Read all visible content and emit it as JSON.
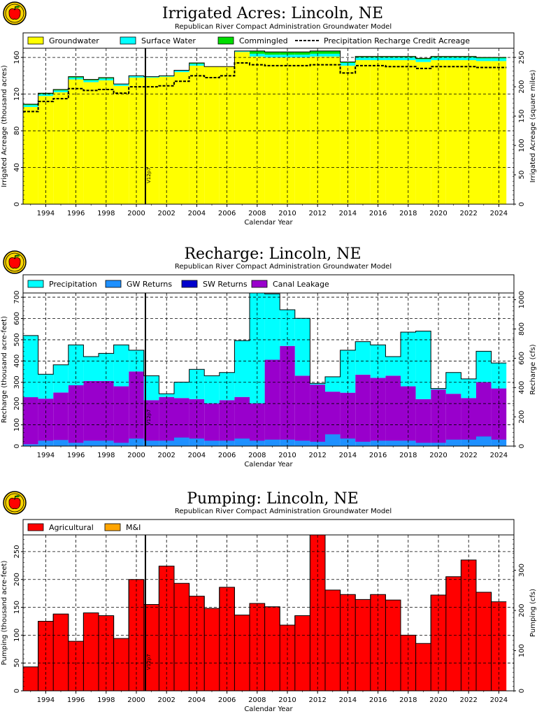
{
  "chart_data": [
    {
      "type": "area",
      "title": "Irrigated Acres: Lincoln, NE",
      "subtitle": "Republican River Compact Administration Groundwater Model",
      "xlabel": "Calendar Year",
      "ylabel": "Irrigated Acreage (thousand acres)",
      "ylabel_right": "Irrigated Acreage (square miles)",
      "ylim": [
        0,
        170
      ],
      "yticks": [
        0,
        40.0,
        80.0,
        120,
        160
      ],
      "yticks_right": [
        0,
        50.0,
        100,
        150,
        200,
        250
      ],
      "xlim": [
        1992.5,
        2025.0
      ],
      "xticks": [
        "1994",
        "1996",
        "1998",
        "2000",
        "2002",
        "2004",
        "2006",
        "2008",
        "2010",
        "2012",
        "2014",
        "2016",
        "2018",
        "2020",
        "2022",
        "2024"
      ],
      "marker": {
        "x": 2000.6,
        "label": "V12p7"
      },
      "years": [
        1992.5,
        1993.5,
        1994.5,
        1995.5,
        1996.5,
        1997.5,
        1998.5,
        1999.5,
        2000.5,
        2001.5,
        2002.5,
        2003.5,
        2004.5,
        2005.5,
        2006.5,
        2007.5,
        2008.5,
        2009.5,
        2010.5,
        2011.5,
        2012.5,
        2013.5,
        2014.5,
        2015.5,
        2016.5,
        2017.5,
        2018.5,
        2019.5,
        2020.5,
        2021.5,
        2022.5,
        2023.5
      ],
      "series": [
        {
          "name": "Groundwater",
          "color": "#ffff00",
          "values": [
            106,
            118,
            122,
            136,
            133,
            135,
            129,
            138,
            138,
            139,
            144,
            151,
            150,
            150,
            166,
            161,
            160,
            160,
            160,
            161,
            161,
            151,
            157,
            157,
            157,
            157,
            155,
            157,
            157,
            157,
            156,
            156
          ]
        },
        {
          "name": "Surface Water",
          "color": "#00ffff",
          "values": [
            2,
            2,
            2,
            2,
            2,
            2,
            2,
            2,
            1,
            1,
            2,
            2,
            0,
            0,
            1,
            3,
            3,
            3,
            3,
            3,
            3,
            3,
            3,
            3,
            3,
            3,
            3,
            3,
            3,
            3,
            3,
            3
          ]
        },
        {
          "name": "Commingled",
          "color": "#00dd00",
          "values": [
            1,
            1,
            1,
            1,
            1,
            1,
            0,
            0,
            0,
            0,
            0,
            1,
            0,
            0,
            0,
            3,
            3,
            3,
            3,
            3,
            3,
            1,
            1,
            1,
            1,
            1,
            1,
            1,
            1,
            1,
            1,
            1
          ]
        },
        {
          "name": "Precipitation Recharge Credit Acreage",
          "style": "dashed",
          "values": [
            101,
            112,
            115,
            126,
            124,
            125,
            121,
            128,
            128,
            129,
            134,
            140,
            138,
            140,
            154,
            152,
            151,
            151,
            151,
            152,
            152,
            143,
            151,
            151,
            150,
            150,
            148,
            150,
            150,
            150,
            149,
            149
          ]
        }
      ]
    },
    {
      "type": "area",
      "title": "Recharge: Lincoln, NE",
      "subtitle": "Republican River Compact Administration Groundwater Model",
      "xlabel": "Calendar Year",
      "ylabel": "Recharge (thousand acre-feet)",
      "ylabel_right": "Recharge (cfs)",
      "ylim": [
        0,
        720
      ],
      "yticks": [
        0,
        100,
        200,
        300,
        400,
        500,
        600,
        700
      ],
      "yticks_right": [
        0,
        200,
        400,
        600,
        800,
        1000
      ],
      "xlim": [
        1992.5,
        2025.0
      ],
      "xticks": [
        "1994",
        "1996",
        "1998",
        "2000",
        "2002",
        "2004",
        "2006",
        "2008",
        "2010",
        "2012",
        "2014",
        "2016",
        "2018",
        "2020",
        "2022",
        "2024"
      ],
      "marker": {
        "x": 2000.6,
        "label": "V12p7"
      },
      "years": [
        1992.5,
        1993.5,
        1994.5,
        1995.5,
        1996.5,
        1997.5,
        1998.5,
        1999.5,
        2000.5,
        2001.5,
        2002.5,
        2003.5,
        2004.5,
        2005.5,
        2006.5,
        2007.5,
        2008.5,
        2009.5,
        2010.5,
        2011.5,
        2012.5,
        2013.5,
        2014.5,
        2015.5,
        2016.5,
        2017.5,
        2018.5,
        2019.5,
        2020.5,
        2021.5,
        2022.5,
        2023.5
      ],
      "series": [
        {
          "name": "GW Returns",
          "color": "#1e90ff",
          "values": [
            8,
            25,
            28,
            15,
            25,
            25,
            15,
            35,
            25,
            25,
            40,
            35,
            25,
            25,
            35,
            25,
            30,
            30,
            25,
            20,
            55,
            35,
            20,
            25,
            25,
            25,
            15,
            15,
            30,
            30,
            45,
            30
          ]
        },
        {
          "name": "SW Returns",
          "color": "#0000cc",
          "values": [
            1,
            1,
            1,
            1,
            1,
            1,
            1,
            1,
            1,
            1,
            1,
            1,
            1,
            1,
            1,
            1,
            1,
            1,
            1,
            1,
            1,
            1,
            1,
            1,
            1,
            1,
            1,
            1,
            1,
            1,
            1,
            1
          ]
        },
        {
          "name": "Canal Leakage",
          "color": "#9900cc",
          "values": [
            221,
            197,
            223,
            270,
            280,
            280,
            265,
            315,
            190,
            205,
            185,
            185,
            175,
            190,
            195,
            175,
            375,
            440,
            305,
            268,
            200,
            215,
            315,
            295,
            305,
            255,
            205,
            250,
            215,
            195,
            255,
            240
          ]
        },
        {
          "name": "Precipitation",
          "color": "#00ffff",
          "values": [
            290,
            115,
            130,
            190,
            115,
            130,
            195,
            100,
            115,
            15,
            75,
            140,
            130,
            130,
            265,
            520,
            310,
            170,
            270,
            6,
            70,
            200,
            155,
            155,
            90,
            255,
            320,
            5,
            100,
            90,
            145,
            120
          ]
        }
      ]
    },
    {
      "type": "bar",
      "title": "Pumping: Lincoln, NE",
      "subtitle": "Republican River Compact Administration Groundwater Model",
      "xlabel": "Calendar Year",
      "ylabel": "Pumping (thousand acre-feet)",
      "ylabel_right": "Pumping (cfs)",
      "ylim": [
        0,
        280
      ],
      "yticks": [
        0,
        50,
        100,
        150,
        200,
        250
      ],
      "yticks_right": [
        0,
        100,
        200,
        300
      ],
      "xlim": [
        1992.5,
        2025.0
      ],
      "xticks": [
        "1994",
        "1996",
        "1998",
        "2000",
        "2002",
        "2004",
        "2006",
        "2008",
        "2010",
        "2012",
        "2014",
        "2016",
        "2018",
        "2020",
        "2022",
        "2024"
      ],
      "marker": {
        "x": 2000.6,
        "label": "V12p7"
      },
      "years": [
        1992.5,
        1993.5,
        1994.5,
        1995.5,
        1996.5,
        1997.5,
        1998.5,
        1999.5,
        2000.5,
        2001.5,
        2002.5,
        2003.5,
        2004.5,
        2005.5,
        2006.5,
        2007.5,
        2008.5,
        2009.5,
        2010.5,
        2011.5,
        2012.5,
        2013.5,
        2014.5,
        2015.5,
        2016.5,
        2017.5,
        2018.5,
        2019.5,
        2020.5,
        2021.5,
        2022.5,
        2023.5
      ],
      "series": [
        {
          "name": "Agricultural",
          "color": "#ff0000",
          "values": [
            43,
            125,
            138,
            89,
            140,
            135,
            94,
            200,
            155,
            224,
            193,
            170,
            148,
            186,
            136,
            157,
            151,
            118,
            135,
            283,
            181,
            173,
            164,
            173,
            163,
            100,
            85,
            172,
            205,
            235,
            177,
            160
          ]
        },
        {
          "name": "M&I",
          "color": "#ffa500",
          "values": [
            0,
            0,
            0,
            0,
            0,
            0,
            0,
            0,
            0,
            0,
            0,
            0,
            0,
            0,
            0,
            0,
            0,
            0,
            0,
            0,
            0,
            0,
            0,
            0,
            0,
            0,
            0,
            0,
            0,
            0,
            0,
            0
          ]
        }
      ]
    }
  ]
}
